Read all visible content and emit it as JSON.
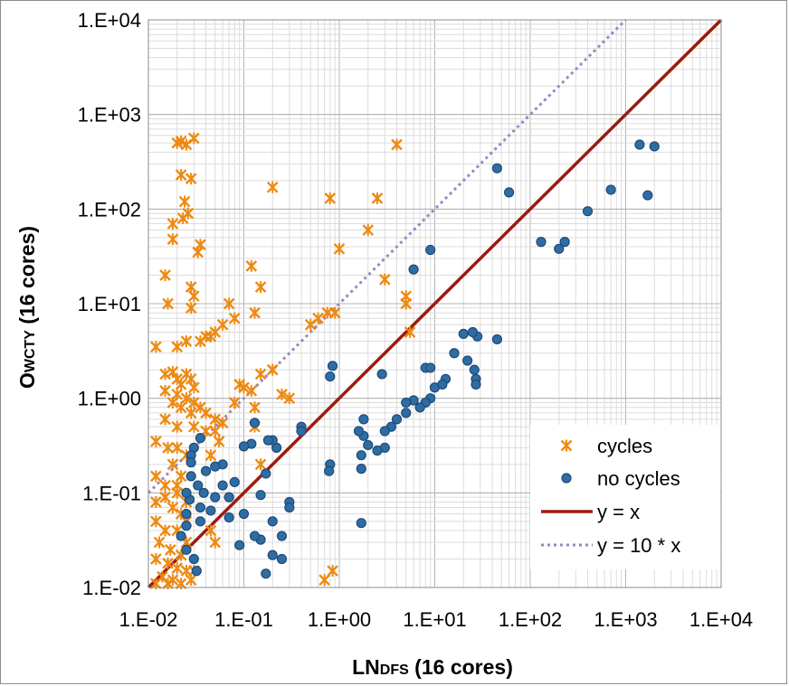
{
  "chart_data": {
    "type": "scatter",
    "xscale": "log",
    "yscale": "log",
    "xlim": [
      0.01,
      10000
    ],
    "ylim": [
      0.01,
      10000
    ],
    "grid": true,
    "legend_position": "bottom-right",
    "xlabel": {
      "main": "LN",
      "small_caps": "DFS",
      "rest": " (16 cores)"
    },
    "ylabel": {
      "main": "O",
      "small_caps": "WCTY",
      "rest": " (16 cores)"
    },
    "x_tick_labels": [
      "1.E-02",
      "1.E-01",
      "1.E+00",
      "1.E+01",
      "1.E+02",
      "1.E+03",
      "1.E+04"
    ],
    "y_tick_labels": [
      "1.E-02",
      "1.E-01",
      "1.E+00",
      "1.E+01",
      "1.E+02",
      "1.E+03",
      "1.E+04"
    ],
    "series": [
      {
        "name": "cycles",
        "marker": "asterisk",
        "color": "#ED8A12",
        "points": [
          [
            0.02,
            500
          ],
          [
            0.022,
            520
          ],
          [
            0.025,
            480
          ],
          [
            0.03,
            560
          ],
          [
            0.022,
            230
          ],
          [
            0.028,
            210
          ],
          [
            0.024,
            120
          ],
          [
            0.026,
            90
          ],
          [
            0.023,
            80
          ],
          [
            0.018,
            70
          ],
          [
            0.018,
            48
          ],
          [
            0.035,
            42
          ],
          [
            0.033,
            35
          ],
          [
            0.028,
            15
          ],
          [
            0.03,
            12
          ],
          [
            0.028,
            9
          ],
          [
            0.016,
            10
          ],
          [
            0.015,
            20
          ],
          [
            0.12,
            25
          ],
          [
            0.15,
            15
          ],
          [
            0.2,
            170
          ],
          [
            0.8,
            130
          ],
          [
            2.5,
            130
          ],
          [
            4,
            480
          ],
          [
            1,
            38
          ],
          [
            2,
            60
          ],
          [
            3,
            18
          ],
          [
            5,
            12
          ],
          [
            5,
            10
          ],
          [
            5.5,
            5
          ],
          [
            0.6,
            7
          ],
          [
            0.75,
            8
          ],
          [
            0.9,
            8
          ],
          [
            0.5,
            6
          ],
          [
            0.13,
            8
          ],
          [
            0.07,
            10
          ],
          [
            0.08,
            7
          ],
          [
            0.06,
            6
          ],
          [
            0.05,
            5
          ],
          [
            0.045,
            4.5
          ],
          [
            0.04,
            4.5
          ],
          [
            0.035,
            4
          ],
          [
            0.025,
            4
          ],
          [
            0.02,
            3.5
          ],
          [
            0.012,
            3.5
          ],
          [
            0.015,
            1.8
          ],
          [
            0.015,
            1.2
          ],
          [
            0.018,
            1.9
          ],
          [
            0.02,
            1.6
          ],
          [
            0.022,
            1.4
          ],
          [
            0.025,
            1.8
          ],
          [
            0.028,
            1.6
          ],
          [
            0.03,
            1.3
          ],
          [
            0.02,
            1.1
          ],
          [
            0.025,
            1.0
          ],
          [
            0.03,
            0.9
          ],
          [
            0.035,
            0.8
          ],
          [
            0.04,
            0.7
          ],
          [
            0.05,
            0.6
          ],
          [
            0.018,
            0.9
          ],
          [
            0.022,
            0.8
          ],
          [
            0.028,
            0.7
          ],
          [
            0.03,
            0.5
          ],
          [
            0.02,
            0.5
          ],
          [
            0.015,
            0.6
          ],
          [
            0.012,
            0.35
          ],
          [
            0.016,
            0.3
          ],
          [
            0.02,
            0.3
          ],
          [
            0.025,
            0.25
          ],
          [
            0.018,
            0.2
          ],
          [
            0.012,
            0.15
          ],
          [
            0.022,
            0.15
          ],
          [
            0.015,
            0.12
          ],
          [
            0.02,
            0.12
          ],
          [
            0.015,
            0.09
          ],
          [
            0.02,
            0.1
          ],
          [
            0.025,
            0.08
          ],
          [
            0.012,
            0.08
          ],
          [
            0.018,
            0.07
          ],
          [
            0.022,
            0.06
          ],
          [
            0.025,
            0.05
          ],
          [
            0.012,
            0.05
          ],
          [
            0.015,
            0.04
          ],
          [
            0.02,
            0.04
          ],
          [
            0.025,
            0.03
          ],
          [
            0.013,
            0.03
          ],
          [
            0.017,
            0.025
          ],
          [
            0.022,
            0.022
          ],
          [
            0.012,
            0.02
          ],
          [
            0.016,
            0.018
          ],
          [
            0.02,
            0.016
          ],
          [
            0.025,
            0.015
          ],
          [
            0.014,
            0.013
          ],
          [
            0.018,
            0.012
          ],
          [
            0.022,
            0.011
          ],
          [
            0.028,
            0.012
          ],
          [
            0.03,
            0.015
          ],
          [
            0.012,
            0.011
          ],
          [
            0.016,
            0.011
          ],
          [
            0.2,
            2.0
          ],
          [
            0.15,
            1.8
          ],
          [
            0.12,
            1.2
          ],
          [
            0.13,
            0.8
          ],
          [
            0.1,
            1.3
          ],
          [
            0.09,
            1.4
          ],
          [
            0.08,
            0.9
          ],
          [
            0.06,
            0.55
          ],
          [
            0.05,
            0.45
          ],
          [
            0.04,
            0.45
          ],
          [
            0.055,
            0.35
          ],
          [
            0.045,
            0.25
          ],
          [
            0.05,
            0.03
          ],
          [
            0.045,
            0.04
          ],
          [
            0.13,
            0.5
          ],
          [
            0.15,
            0.2
          ],
          [
            0.25,
            1.1
          ],
          [
            0.3,
            1.0
          ],
          [
            0.7,
            0.012
          ],
          [
            0.85,
            0.015
          ]
        ]
      },
      {
        "name": "no cycles",
        "marker": "circle",
        "color": "#2E6DA4",
        "points": [
          [
            1400,
            480
          ],
          [
            2000,
            460
          ],
          [
            1700,
            140
          ],
          [
            700,
            160
          ],
          [
            400,
            95
          ],
          [
            130,
            45
          ],
          [
            200,
            38
          ],
          [
            230,
            45
          ],
          [
            45,
            270
          ],
          [
            60,
            150
          ],
          [
            45,
            4.2
          ],
          [
            28,
            4.5
          ],
          [
            25,
            5
          ],
          [
            20,
            4.8
          ],
          [
            22,
            2.5
          ],
          [
            26,
            2.0
          ],
          [
            27,
            1.6
          ],
          [
            27,
            1.4
          ],
          [
            9,
            37
          ],
          [
            6,
            23
          ],
          [
            16,
            3
          ],
          [
            13,
            1.6
          ],
          [
            10,
            1.3
          ],
          [
            8,
            2.1
          ],
          [
            9,
            2.1
          ],
          [
            12,
            1.4
          ],
          [
            9,
            1.0
          ],
          [
            8,
            0.9
          ],
          [
            7,
            0.8
          ],
          [
            6,
            0.95
          ],
          [
            5,
            0.9
          ],
          [
            5,
            0.7
          ],
          [
            4,
            0.6
          ],
          [
            3.5,
            0.5
          ],
          [
            3,
            0.45
          ],
          [
            3,
            0.3
          ],
          [
            2.8,
            1.8
          ],
          [
            2.5,
            0.28
          ],
          [
            2,
            0.32
          ],
          [
            1.8,
            0.6
          ],
          [
            1.8,
            0.4
          ],
          [
            1.7,
            0.25
          ],
          [
            1.7,
            0.18
          ],
          [
            1.6,
            0.45
          ],
          [
            0.85,
            2.2
          ],
          [
            0.8,
            1.7
          ],
          [
            0.8,
            0.2
          ],
          [
            0.78,
            0.17
          ],
          [
            1.7,
            0.048
          ],
          [
            0.4,
            0.5
          ],
          [
            0.4,
            0.45
          ],
          [
            0.3,
            0.08
          ],
          [
            0.3,
            0.07
          ],
          [
            0.25,
            0.035
          ],
          [
            0.25,
            0.02
          ],
          [
            0.22,
            0.3
          ],
          [
            0.2,
            0.36
          ],
          [
            0.18,
            0.36
          ],
          [
            0.2,
            0.022
          ],
          [
            0.17,
            0.014
          ],
          [
            0.15,
            0.032
          ],
          [
            0.13,
            0.55
          ],
          [
            0.17,
            0.16
          ],
          [
            0.15,
            0.095
          ],
          [
            0.13,
            0.035
          ],
          [
            0.12,
            0.33
          ],
          [
            0.1,
            0.31
          ],
          [
            0.1,
            0.06
          ],
          [
            0.09,
            0.028
          ],
          [
            0.08,
            0.13
          ],
          [
            0.07,
            0.09
          ],
          [
            0.06,
            0.2
          ],
          [
            0.05,
            0.19
          ],
          [
            0.045,
            0.065
          ],
          [
            0.04,
            0.17
          ],
          [
            0.038,
            0.1
          ],
          [
            0.035,
            0.07
          ],
          [
            0.035,
            0.05
          ],
          [
            0.033,
            0.12
          ],
          [
            0.03,
            0.3
          ],
          [
            0.028,
            0.25
          ],
          [
            0.028,
            0.15
          ],
          [
            0.027,
            0.085
          ],
          [
            0.025,
            0.06
          ],
          [
            0.025,
            0.045
          ],
          [
            0.03,
            0.02
          ],
          [
            0.032,
            0.015
          ],
          [
            0.025,
            0.025
          ],
          [
            0.022,
            0.035
          ],
          [
            0.025,
            0.1
          ],
          [
            0.028,
            0.21
          ],
          [
            0.035,
            0.38
          ],
          [
            0.06,
            0.12
          ],
          [
            0.07,
            0.055
          ],
          [
            0.05,
            0.09
          ],
          [
            0.2,
            0.05
          ]
        ]
      }
    ],
    "lines": [
      {
        "name": "y = x",
        "style": "solid",
        "color": "#9B1B0E",
        "multiplier": 1
      },
      {
        "name": "y = 10 * x",
        "style": "dotted",
        "color": "#9B86C0",
        "multiplier": 10
      }
    ],
    "legend": [
      "cycles",
      "no cycles",
      "y = x",
      "y = 10 * x"
    ]
  }
}
